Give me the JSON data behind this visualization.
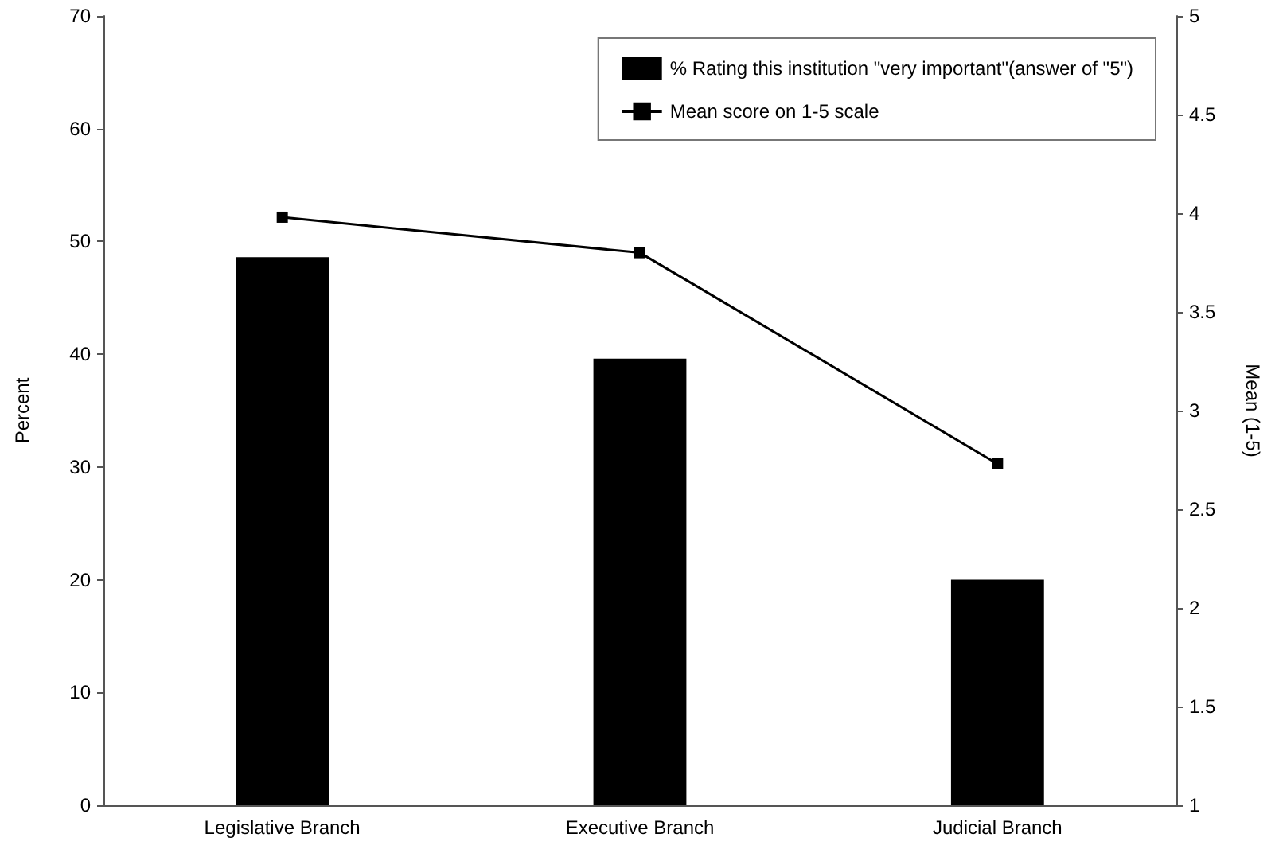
{
  "chart_data": {
    "type": "bar",
    "categories": [
      "Legislative Branch",
      "Executive Branch",
      "Judicial Branch"
    ],
    "series": [
      {
        "name": "% Rating this institution \"very important\"(answer of \"5\")",
        "color": "#000000",
        "values": [
          48.6,
          39.6,
          20
        ]
      },
      {
        "name": "Mean score on 1-5 scale",
        "type": "line",
        "color": "#000000",
        "axis": "y2",
        "marker": "square",
        "values": [
          3.98,
          3.8,
          2.73
        ]
      }
    ],
    "ylabel": "Percent",
    "y2label": "Mean (1-5)",
    "ylim": [
      0,
      70
    ],
    "yticks": [
      0,
      10,
      20,
      30,
      40,
      50,
      60,
      70
    ],
    "y2lim": [
      1,
      5
    ],
    "y2ticks": [
      1,
      1.5,
      2,
      2.5,
      3,
      3.5,
      4,
      4.5,
      5
    ],
    "grid": false,
    "legend": "top right"
  }
}
